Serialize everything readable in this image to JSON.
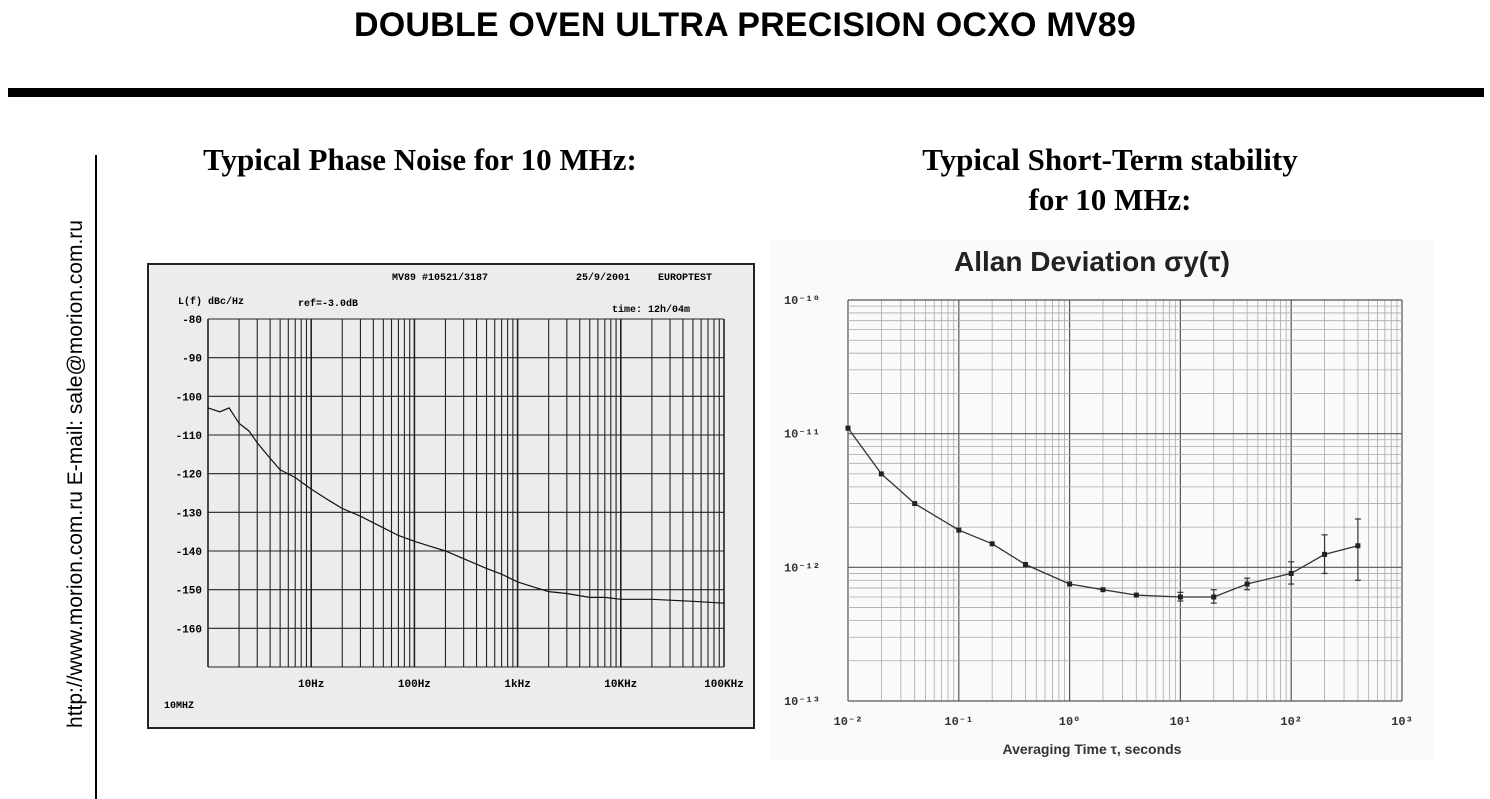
{
  "document": {
    "title": "DOUBLE OVEN ULTRA PRECISION OCXO MV89",
    "sidebar_text": "http://www.morion.com.ru  E-mail: sale@morion.com.ru",
    "left_heading": "Typical Phase Noise for 10 MHz:",
    "right_heading_line1": "Typical Short-Term stability",
    "right_heading_line2": "for 10 MHz:"
  },
  "chart_data": [
    {
      "type": "line",
      "header": {
        "device": "MV89 #10521/3187",
        "date": "25/9/2001",
        "lab": "EUROPTEST",
        "ylabel": "L(f)  dBc/Hz",
        "ref": "ref=-3.0dB",
        "time": "time: 12h/04m",
        "carrier": "10MHZ"
      },
      "y_ticks": [
        "-80",
        "-90",
        "-100",
        "-110",
        "-120",
        "-130",
        "-140",
        "-150",
        "-160"
      ],
      "x_ticks": [
        "10Hz",
        "100Hz",
        "1kHz",
        "10KHz",
        "100KHz"
      ],
      "xscale": "log",
      "xlim": [
        1,
        100000
      ],
      "ylim": [
        -170,
        -80
      ],
      "grid": true,
      "series": [
        {
          "x": [
            1,
            1.3,
            1.6,
            2,
            2.5,
            3,
            4,
            5,
            7,
            10,
            15,
            20,
            30,
            50,
            70,
            100,
            150,
            200,
            300,
            500,
            700,
            1000,
            1500,
            2000,
            3000,
            5000,
            7000,
            10000,
            20000,
            50000,
            100000
          ],
          "y": [
            -103,
            -104,
            -103,
            -107,
            -109,
            -112,
            -116,
            -119,
            -121,
            -124,
            -127,
            -129,
            -131,
            -134,
            -136,
            -137.5,
            -139,
            -140,
            -142,
            -144.5,
            -146,
            -148,
            -149.5,
            -150.5,
            -151,
            -152,
            -152,
            -152.5,
            -152.5,
            -153,
            -153.5
          ]
        }
      ]
    },
    {
      "type": "line",
      "title": "Allan Deviation σy(τ)",
      "xlabel": "Averaging Time τ, seconds",
      "xscale": "log",
      "yscale": "log",
      "xlim": [
        0.01,
        1000
      ],
      "ylim": [
        1e-13,
        1e-10
      ],
      "x_ticks": [
        "10⁻²",
        "10⁻¹",
        "10⁰",
        "10¹",
        "10²",
        "10³"
      ],
      "y_ticks": [
        "10⁻¹⁰",
        "10⁻¹¹",
        "10⁻¹²",
        "10⁻¹³"
      ],
      "grid": true,
      "series": [
        {
          "x": [
            0.01,
            0.02,
            0.04,
            0.1,
            0.2,
            0.4,
            1,
            2,
            4,
            10,
            20,
            40,
            100,
            200,
            400
          ],
          "y": [
            1.1e-11,
            5e-12,
            3e-12,
            1.9e-12,
            1.5e-12,
            1.05e-12,
            7.5e-13,
            6.8e-13,
            6.2e-13,
            6e-13,
            6e-13,
            7.5e-13,
            9e-13,
            1.25e-12,
            1.45e-12
          ],
          "err_low": [
            null,
            null,
            null,
            null,
            null,
            null,
            null,
            null,
            null,
            5.6e-13,
            5.4e-13,
            6.8e-13,
            7.5e-13,
            9e-13,
            8e-13
          ],
          "err_high": [
            null,
            null,
            null,
            null,
            null,
            null,
            null,
            null,
            null,
            6.5e-13,
            6.8e-13,
            8.3e-13,
            1.1e-12,
            1.75e-12,
            2.3e-12
          ]
        }
      ]
    }
  ]
}
